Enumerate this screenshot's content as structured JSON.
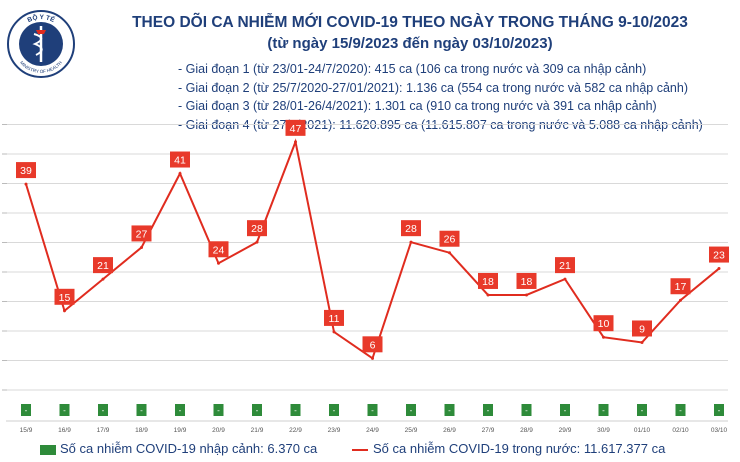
{
  "logo": {
    "top_text": "BỘ Y TẾ",
    "bottom_text": "MINISTRY OF HEALTH"
  },
  "header": {
    "title": "THEO DÕI CA NHIỄM MỚI COVID-19 THEO NGÀY TRONG THÁNG 9-10/2023",
    "subtitle": "(từ ngày 15/9/2023 đến ngày 03/10/2023)"
  },
  "notes": [
    "- Giai đoạn 1 (từ 23/01-24/7/2020): 415 ca (106 ca trong nước và 309 ca nhập cảnh)",
    "- Giai đoạn 2 (từ 25/7/2020-27/01/2021): 1.136 ca (554 ca trong nước và 582 ca nhập cảnh)",
    "- Giai đoạn 3 (từ 28/01-26/4/2021): 1.301 ca (910 ca trong nước và 391 ca nhập cảnh)",
    "- Giai đoạn 4 (từ 27/4/2021): 11.620.895 ca (11.615.807 ca trong nước và 5.088 ca nhập cảnh)"
  ],
  "legend": {
    "imported": "Số ca nhiễm COVID-19 nhập cảnh: 6.370 ca",
    "domestic": "Số ca nhiễm COVID-19 trong nước: 11.617.377 ca"
  },
  "colors": {
    "line": "#e02c1f",
    "label_bg": "#e8392a",
    "imported_bar": "#2e8b3a",
    "grid": "#d9d9d9",
    "text": "#1f3f7a"
  },
  "chart_data": {
    "type": "line",
    "categories": [
      "15/9",
      "16/9",
      "17/9",
      "18/9",
      "19/9",
      "20/9",
      "21/9",
      "22/9",
      "23/9",
      "24/9",
      "25/9",
      "26/9",
      "27/9",
      "28/9",
      "29/9",
      "30/9",
      "01/10",
      "02/10",
      "03/10"
    ],
    "series": [
      {
        "values": [
          39,
          15,
          21,
          27,
          41,
          24,
          28,
          47,
          11,
          6,
          28,
          26,
          18,
          18,
          21,
          10,
          9,
          17,
          23
        ]
      },
      {
        "values": [
          0,
          0,
          0,
          0,
          0,
          0,
          0,
          0,
          0,
          0,
          0,
          0,
          0,
          0,
          0,
          0,
          0,
          0,
          0
        ],
        "labels": [
          "-",
          "-",
          "-",
          "-",
          "-",
          "-",
          "-",
          "-",
          "-",
          "-",
          "-",
          "-",
          "-",
          "-",
          "-",
          "-",
          "-",
          "-",
          "-"
        ]
      }
    ],
    "ylim": [
      0,
      50
    ],
    "grid": true,
    "legend_position": "bottom"
  }
}
